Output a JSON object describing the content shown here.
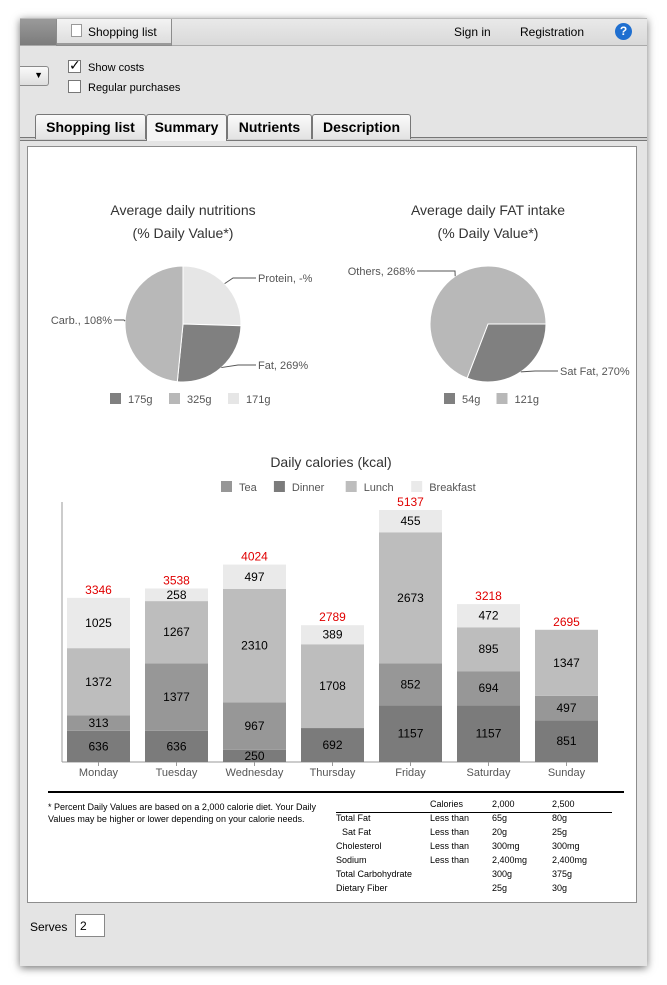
{
  "topbar": {
    "tab_label": "Shopping list",
    "sign_in": "Sign in",
    "registration": "Registration",
    "help_icon": "help-icon"
  },
  "options": {
    "show_costs": {
      "label": "Show costs",
      "checked": true
    },
    "regular_purchases": {
      "label": "Regular purchases",
      "checked": false
    }
  },
  "tabs": [
    {
      "label": "Shopping list",
      "active": false
    },
    {
      "label": "Summary",
      "active": true
    },
    {
      "label": "Nutrients",
      "active": false
    },
    {
      "label": "Description",
      "active": false
    }
  ],
  "chart_data": [
    {
      "type": "pie",
      "title": "Average daily nutritions",
      "subtitle": "(% Daily Value*)",
      "slices": [
        {
          "label": "Protein, -%",
          "legend": "171g",
          "value": 171,
          "color": "#e6e6e6"
        },
        {
          "label": "Fat, 269%",
          "legend": "175g",
          "value": 175,
          "color": "#808080"
        },
        {
          "label": "Carb., 108%",
          "legend": "325g",
          "value": 325,
          "color": "#b8b8b8"
        }
      ]
    },
    {
      "type": "pie",
      "title": "Average daily FAT intake",
      "subtitle": "(% Daily Value*)",
      "slices": [
        {
          "label": "Sat Fat, 270%",
          "legend": "54g",
          "value": 54,
          "color": "#808080"
        },
        {
          "label": "Others, 268%",
          "legend": "121g",
          "value": 121,
          "color": "#b8b8b8"
        }
      ]
    },
    {
      "type": "bar",
      "stacked": true,
      "title": "Daily calories (kcal)",
      "categories": [
        "Monday",
        "Tuesday",
        "Wednesday",
        "Thursday",
        "Friday",
        "Saturday",
        "Sunday"
      ],
      "legend": [
        {
          "name": "Tea",
          "color": "#979797"
        },
        {
          "name": "Dinner",
          "color": "#7b7b7b"
        },
        {
          "name": "Lunch",
          "color": "#bdbdbd"
        },
        {
          "name": "Breakfast",
          "color": "#eaeaea"
        }
      ],
      "segments_bottom_to_top": [
        [
          636,
          313,
          1372,
          1025
        ],
        [
          636,
          1377,
          1267,
          258
        ],
        [
          250,
          967,
          2310,
          497
        ],
        [
          692,
          1708,
          389
        ],
        [
          1157,
          852,
          2673,
          455
        ],
        [
          1157,
          694,
          895,
          472
        ],
        [
          851,
          497,
          1347
        ]
      ],
      "segment_colors": [
        [
          "#7b7b7b",
          "#979797",
          "#bdbdbd",
          "#eaeaea"
        ],
        [
          "#7b7b7b",
          "#979797",
          "#bdbdbd",
          "#eaeaea"
        ],
        [
          "#7b7b7b",
          "#979797",
          "#bdbdbd",
          "#eaeaea"
        ],
        [
          "#7b7b7b",
          "#bdbdbd",
          "#eaeaea"
        ],
        [
          "#7b7b7b",
          "#979797",
          "#bdbdbd",
          "#eaeaea"
        ],
        [
          "#7b7b7b",
          "#979797",
          "#bdbdbd",
          "#eaeaea"
        ],
        [
          "#7b7b7b",
          "#979797",
          "#bdbdbd"
        ]
      ],
      "totals": [
        3346,
        3538,
        4024,
        2789,
        5137,
        3218,
        2695
      ],
      "total_color": "#e00000",
      "ylim": [
        0,
        5300
      ]
    }
  ],
  "footnote": "* Percent Daily Values are based on a 2,000 calorie diet. Your Daily Values may be higher or lower depending on your calorie needs.",
  "nutrition_table": {
    "header": [
      "",
      "Calories",
      "2,000",
      "2,500"
    ],
    "rows": [
      [
        "Total Fat",
        "Less than",
        "65g",
        "80g"
      ],
      [
        "Sat Fat",
        "Less than",
        "20g",
        "25g"
      ],
      [
        "Cholesterol",
        "Less than",
        "300mg",
        "300mg"
      ],
      [
        "Sodium",
        "Less than",
        "2,400mg",
        "2,400mg"
      ],
      [
        "Total Carbohydrate",
        "",
        "300g",
        "375g"
      ],
      [
        "Dietary Fiber",
        "",
        "25g",
        "30g"
      ]
    ]
  },
  "serves": {
    "label": "Serves",
    "value": "2"
  }
}
